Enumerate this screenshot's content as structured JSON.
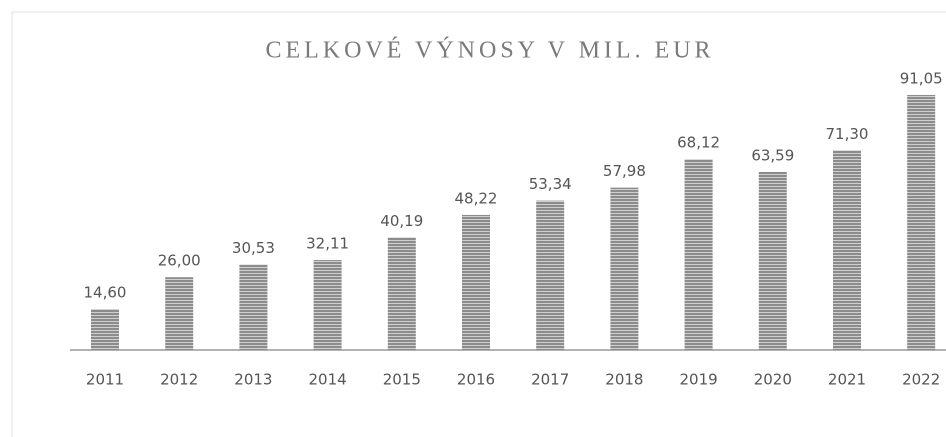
{
  "chart_data": {
    "type": "bar",
    "title": "CELKOVÉ VÝNOSY V MIL. EUR",
    "categories": [
      "2011",
      "2012",
      "2013",
      "2014",
      "2015",
      "2016",
      "2017",
      "2018",
      "2019",
      "2020",
      "2021",
      "2022"
    ],
    "values": [
      14.6,
      26.0,
      30.53,
      32.11,
      40.19,
      48.22,
      53.34,
      57.98,
      68.12,
      63.59,
      71.3,
      91.05
    ],
    "value_labels": [
      "14,60",
      "26,00",
      "30,53",
      "32,11",
      "40,19",
      "48,22",
      "53,34",
      "57,98",
      "68,12",
      "63,59",
      "71,30",
      "91,05"
    ],
    "color": "#8c8c8c"
  }
}
